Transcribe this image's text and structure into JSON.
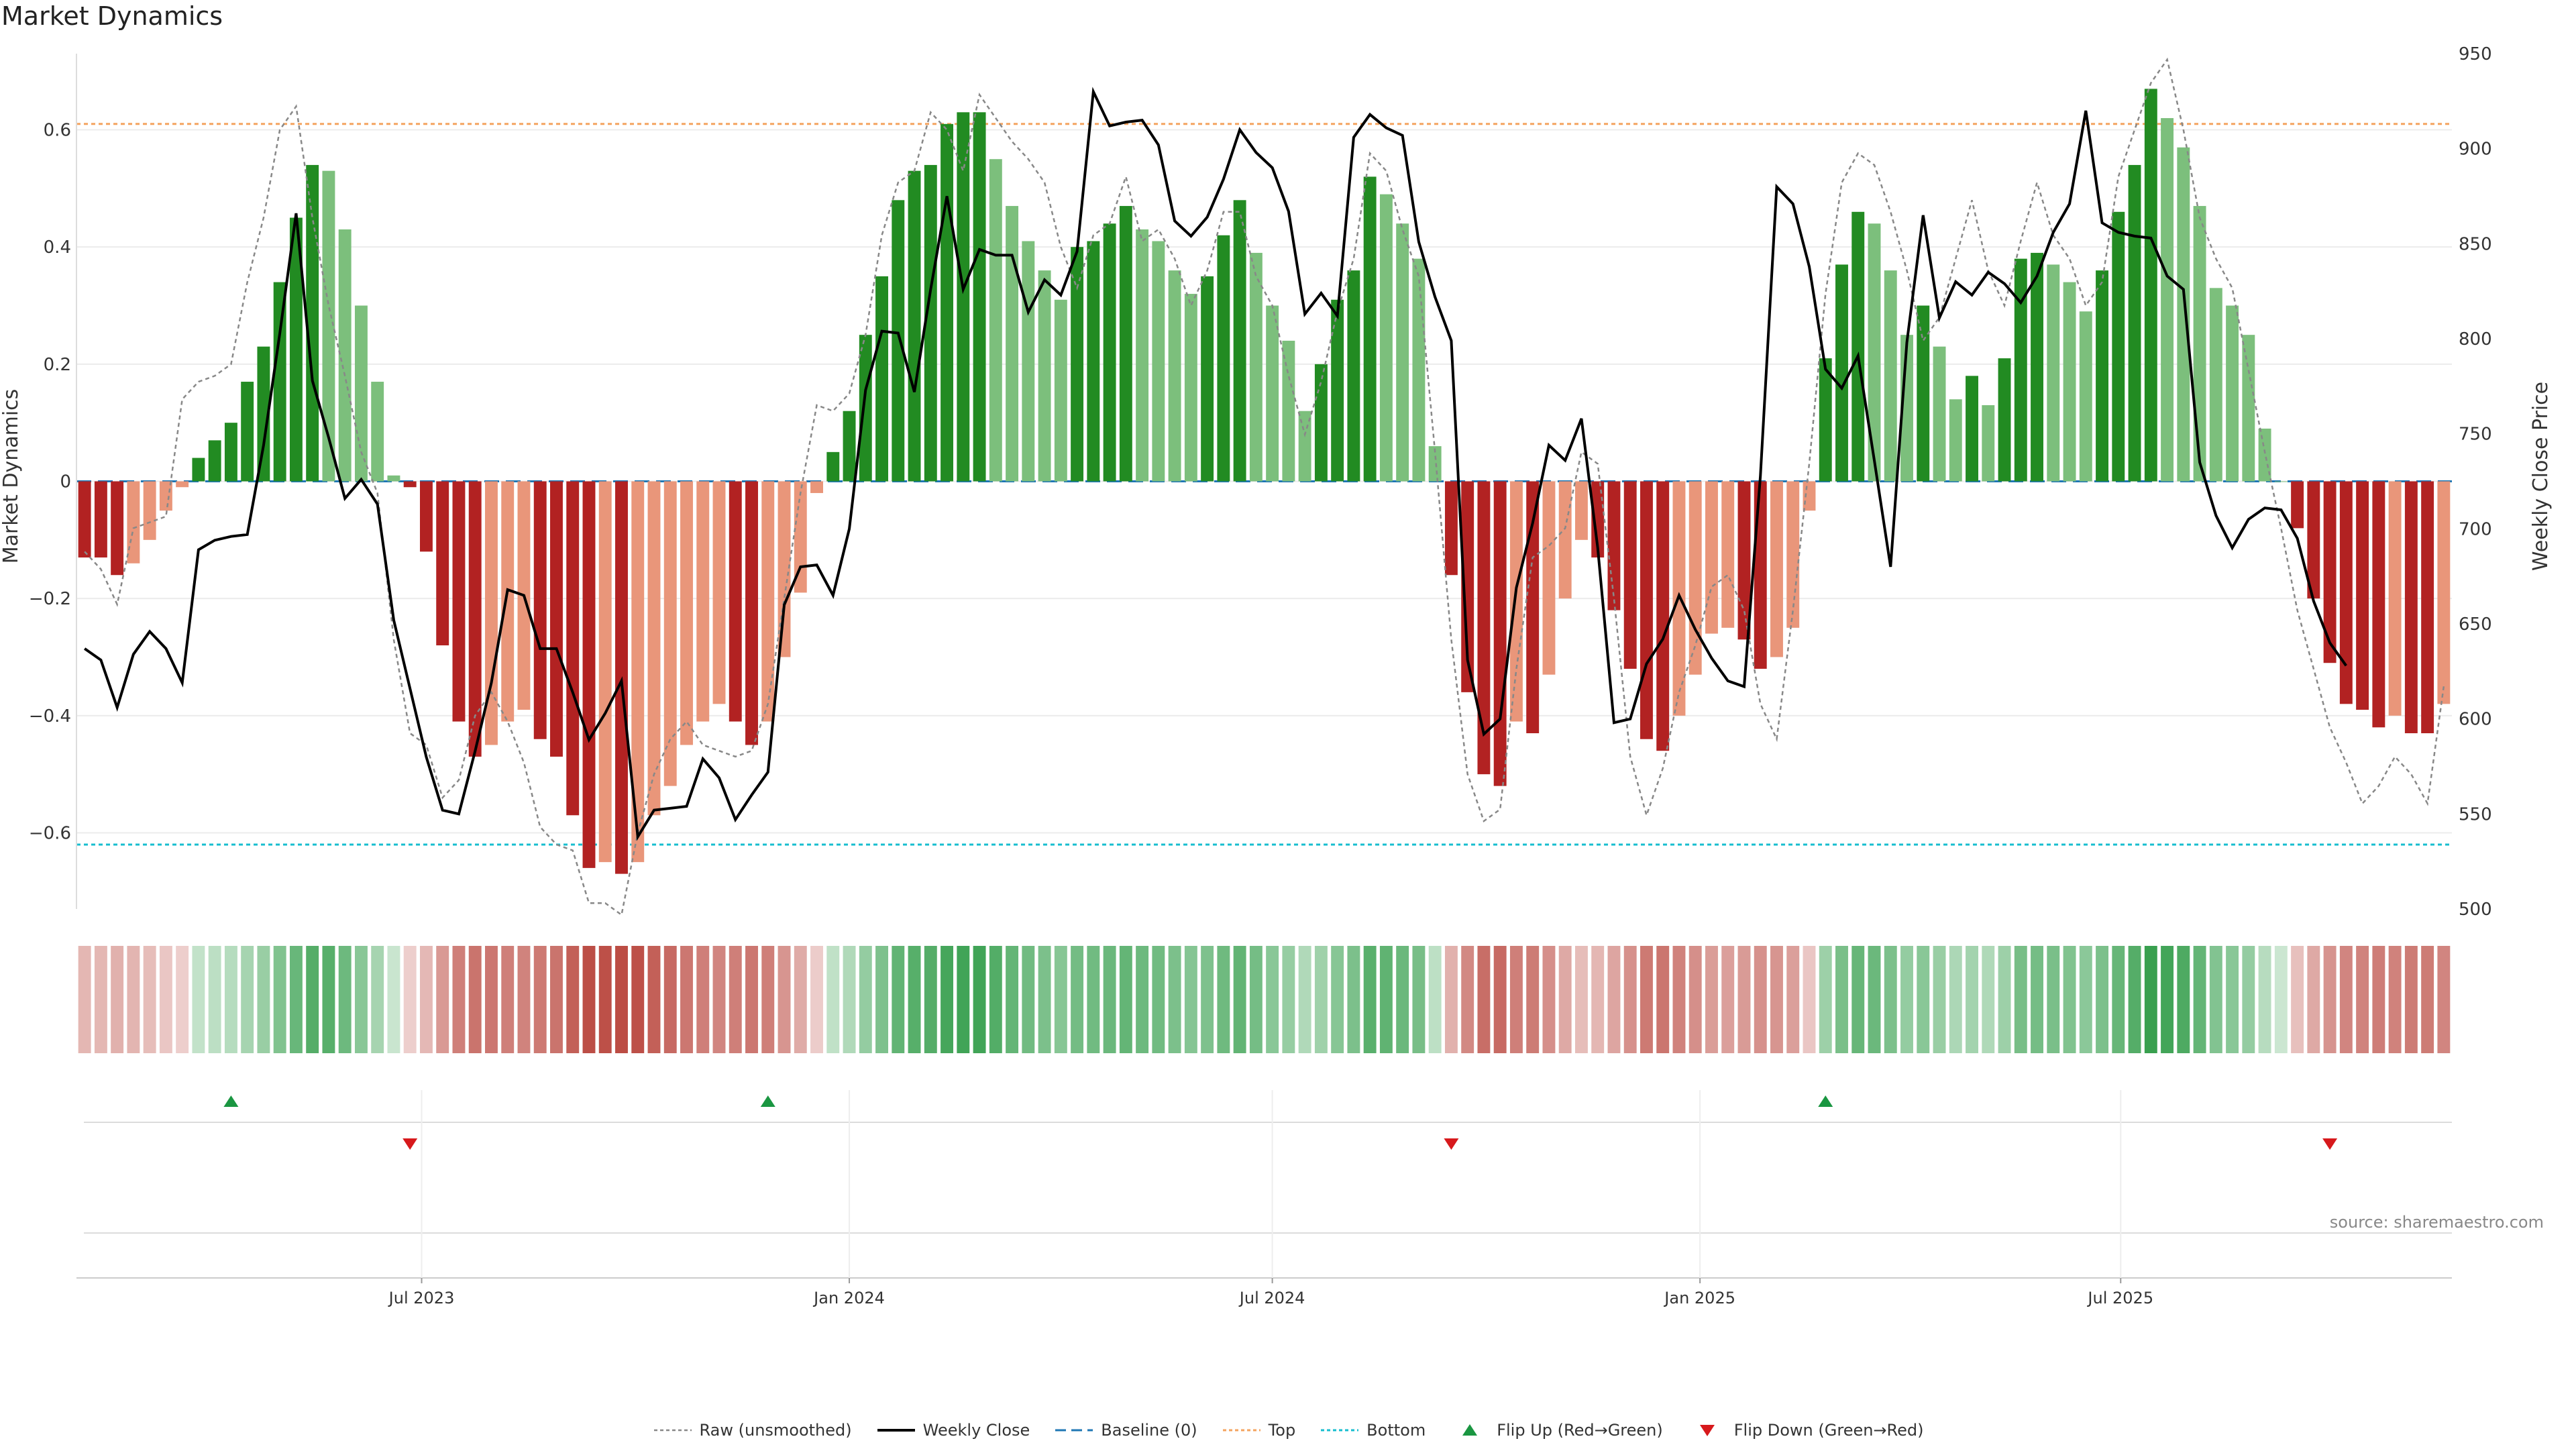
{
  "title": "Market Dynamics",
  "source": "source: sharemaestro.com",
  "colors": {
    "strong_green": "#228b22",
    "light_green": "#7cbf7c",
    "strong_red": "#b22222",
    "light_red": "#e9967a",
    "close": "#000000",
    "raw": "#888888",
    "baseline": "#1f77b4",
    "top": "#f4a460",
    "bottom": "#17becf",
    "flip_up": "#1a9641",
    "flip_down": "#d7191c"
  },
  "legend": [
    {
      "key": "raw",
      "label": "Raw (unsmoothed)"
    },
    {
      "key": "close",
      "label": "Weekly Close"
    },
    {
      "key": "baseline",
      "label": "Baseline (0)"
    },
    {
      "key": "top",
      "label": "Top"
    },
    {
      "key": "bottom",
      "label": "Bottom"
    },
    {
      "key": "flip_up",
      "label": "Flip Up (Red→Green)"
    },
    {
      "key": "flip_down",
      "label": "Flip Down (Green→Red)"
    }
  ],
  "chart_data": {
    "type": "bar",
    "title": "Market Dynamics",
    "ylabel": "Market Dynamics",
    "y2label": "Weekly Close Price",
    "ylim": [
      -0.73,
      0.73
    ],
    "y2lim": [
      500,
      950
    ],
    "yticks": [
      "0.6",
      "0.4",
      "0.2",
      "0",
      "−0.2",
      "−0.4",
      "−0.6"
    ],
    "yticks_values": [
      0.6,
      0.4,
      0.2,
      0,
      -0.2,
      -0.4,
      -0.6
    ],
    "y2ticks": [
      950,
      900,
      850,
      800,
      750,
      700,
      650,
      600,
      550,
      500
    ],
    "x_start": "2023-02-06",
    "x_interval_days": 7,
    "xtick_labels": [
      "Jul 2023",
      "Jan 2024",
      "Jul 2024",
      "Jan 2025",
      "Jul 2025"
    ],
    "xtick_dates": [
      "2023-07-01",
      "2024-01-01",
      "2024-07-01",
      "2025-01-01",
      "2025-07-01"
    ],
    "top_threshold": 0.61,
    "bottom_threshold": -0.62,
    "baseline": 0,
    "grid": true,
    "legend_position": "bottom",
    "series": [
      {
        "name": "Market Dynamics",
        "values": [
          -0.13,
          -0.13,
          -0.16,
          -0.14,
          -0.1,
          -0.05,
          -0.01,
          0.04,
          0.07,
          0.1,
          0.17,
          0.23,
          0.34,
          0.45,
          0.54,
          0.53,
          0.43,
          0.3,
          0.17,
          0.01,
          -0.01,
          -0.12,
          -0.28,
          -0.41,
          -0.47,
          -0.45,
          -0.41,
          -0.39,
          -0.44,
          -0.47,
          -0.57,
          -0.66,
          -0.65,
          -0.67,
          -0.65,
          -0.57,
          -0.52,
          -0.45,
          -0.41,
          -0.38,
          -0.41,
          -0.45,
          -0.41,
          -0.3,
          -0.19,
          -0.02,
          0.05,
          0.12,
          0.25,
          0.35,
          0.48,
          0.53,
          0.54,
          0.61,
          0.63,
          0.63,
          0.55,
          0.47,
          0.41,
          0.36,
          0.31,
          0.4,
          0.41,
          0.44,
          0.47,
          0.43,
          0.41,
          0.36,
          0.32,
          0.35,
          0.42,
          0.48,
          0.39,
          0.3,
          0.24,
          0.12,
          0.2,
          0.31,
          0.36,
          0.52,
          0.49,
          0.44,
          0.38,
          0.06,
          -0.16,
          -0.36,
          -0.5,
          -0.52,
          -0.41,
          -0.43,
          -0.33,
          -0.2,
          -0.1,
          -0.13,
          -0.22,
          -0.32,
          -0.44,
          -0.46,
          -0.4,
          -0.33,
          -0.26,
          -0.25,
          -0.27,
          -0.32,
          -0.3,
          -0.25,
          -0.05,
          0.21,
          0.37,
          0.46,
          0.44,
          0.36,
          0.25,
          0.3,
          0.23,
          0.14,
          0.18,
          0.13,
          0.21,
          0.38,
          0.39,
          0.37,
          0.34,
          0.29,
          0.36,
          0.46,
          0.54,
          0.67,
          0.62,
          0.57,
          0.47,
          0.33,
          0.3,
          0.25,
          0.09,
          0,
          -0.08,
          -0.2,
          -0.31,
          -0.38,
          -0.39,
          -0.42,
          -0.4,
          -0.43,
          -0.43,
          -0.38
        ]
      },
      {
        "name": "Raw (unsmoothed)",
        "values": [
          -0.12,
          -0.15,
          -0.21,
          -0.08,
          -0.07,
          -0.06,
          0.14,
          0.17,
          0.18,
          0.2,
          0.34,
          0.45,
          0.6,
          0.64,
          0.45,
          0.3,
          0.18,
          0.05,
          -0.02,
          -0.27,
          -0.43,
          -0.45,
          -0.54,
          -0.51,
          -0.4,
          -0.36,
          -0.41,
          -0.48,
          -0.59,
          -0.62,
          -0.63,
          -0.72,
          -0.72,
          -0.74,
          -0.6,
          -0.5,
          -0.44,
          -0.41,
          -0.45,
          -0.46,
          -0.47,
          -0.46,
          -0.38,
          -0.2,
          -0.02,
          0.13,
          0.12,
          0.15,
          0.25,
          0.42,
          0.51,
          0.53,
          0.63,
          0.6,
          0.53,
          0.66,
          0.62,
          0.58,
          0.55,
          0.51,
          0.4,
          0.33,
          0.42,
          0.44,
          0.52,
          0.41,
          0.43,
          0.38,
          0.3,
          0.36,
          0.46,
          0.46,
          0.35,
          0.3,
          0.18,
          0.08,
          0.17,
          0.29,
          0.38,
          0.56,
          0.53,
          0.43,
          0.35,
          0.05,
          -0.27,
          -0.5,
          -0.58,
          -0.56,
          -0.32,
          -0.13,
          -0.11,
          -0.08,
          0.05,
          0.03,
          -0.2,
          -0.47,
          -0.57,
          -0.49,
          -0.36,
          -0.28,
          -0.18,
          -0.16,
          -0.22,
          -0.38,
          -0.44,
          -0.22,
          0.03,
          0.32,
          0.51,
          0.56,
          0.54,
          0.46,
          0.36,
          0.24,
          0.28,
          0.38,
          0.48,
          0.36,
          0.3,
          0.41,
          0.51,
          0.42,
          0.38,
          0.3,
          0.34,
          0.52,
          0.6,
          0.68,
          0.72,
          0.6,
          0.45,
          0.38,
          0.33,
          0.19,
          0.05,
          -0.08,
          -0.22,
          -0.32,
          -0.42,
          -0.48,
          -0.55,
          -0.52,
          -0.47,
          -0.5,
          -0.55,
          -0.35
        ]
      },
      {
        "name": "Weekly Close",
        "values": [
          637,
          631,
          606,
          634,
          646,
          637,
          619,
          689,
          694,
          696,
          697,
          744,
          803,
          866,
          778,
          748,
          716,
          726,
          713,
          652,
          616,
          580,
          552,
          550,
          583,
          619,
          668,
          665,
          637,
          637,
          614,
          589,
          603,
          620,
          538,
          552,
          553,
          554,
          579,
          569,
          547,
          560,
          572,
          660,
          680,
          681,
          665,
          700,
          773,
          804,
          803,
          772,
          826,
          875,
          826,
          847,
          844,
          844,
          814,
          831,
          823,
          846,
          930,
          912,
          914,
          915,
          902,
          862,
          854,
          864,
          884,
          910,
          898,
          890,
          867,
          813,
          824,
          812,
          906,
          918,
          911,
          907,
          851,
          822,
          799,
          631,
          592,
          600,
          669,
          703,
          744,
          736,
          758,
          690,
          598,
          600,
          629,
          642,
          665,
          647,
          632,
          620,
          617,
          728,
          880,
          871,
          838,
          784,
          774,
          791,
          736,
          680,
          798,
          865,
          811,
          830,
          823,
          835,
          829,
          819,
          833,
          856,
          871,
          920,
          861,
          856,
          854,
          853,
          833,
          826,
          735,
          707,
          690,
          705,
          711,
          710,
          695,
          662,
          640,
          628
        ]
      }
    ],
    "flip_up_dates": [
      "2023-04-10",
      "2023-11-27",
      "2025-02-24"
    ],
    "flip_down_dates": [
      "2023-06-26",
      "2024-09-16",
      "2025-09-29"
    ]
  }
}
